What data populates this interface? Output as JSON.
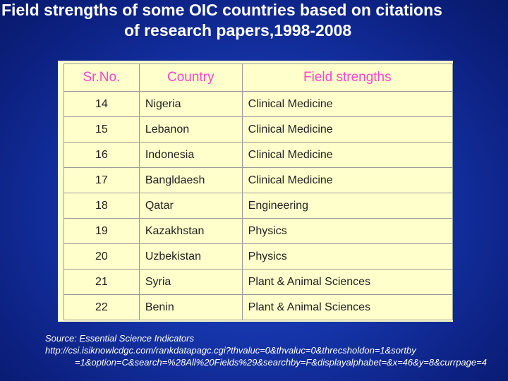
{
  "title": {
    "line1": "Field strengths of some OIC countries based on citations",
    "line2": "of research papers,1998-2008"
  },
  "table": {
    "headers": [
      "Sr.No.",
      "Country",
      "Field strengths"
    ],
    "rows": [
      {
        "sr": "14",
        "country": "Nigeria",
        "field": "Clinical Medicine"
      },
      {
        "sr": "15",
        "country": "Lebanon",
        "field": "Clinical Medicine"
      },
      {
        "sr": "16",
        "country": "Indonesia",
        "field": "Clinical Medicine"
      },
      {
        "sr": "17",
        "country": "Bangldaesh",
        "field": "Clinical Medicine"
      },
      {
        "sr": "18",
        "country": "Qatar",
        "field": "Engineering"
      },
      {
        "sr": "19",
        "country": "Kazakhstan",
        "field": "Physics"
      },
      {
        "sr": "20",
        "country": "Uzbekistan",
        "field": "Physics"
      },
      {
        "sr": "21",
        "country": "Syria",
        "field": "Plant & Animal Sciences"
      },
      {
        "sr": "22",
        "country": "Benin",
        "field": "Plant & Animal Sciences"
      }
    ]
  },
  "source": {
    "label": "Source: Essential Science Indicators",
    "url_line1": "http://csi.isiknowlcdgc.com/rankdatapagc.cgi?thvaluc=0&thvaluc=0&threcsholdon=1&sortby",
    "url_line2": "=1&option=C&search=%28All%20Fields%29&searchby=F&displayalphabet=&x=46&y=8&currpage=4"
  }
}
